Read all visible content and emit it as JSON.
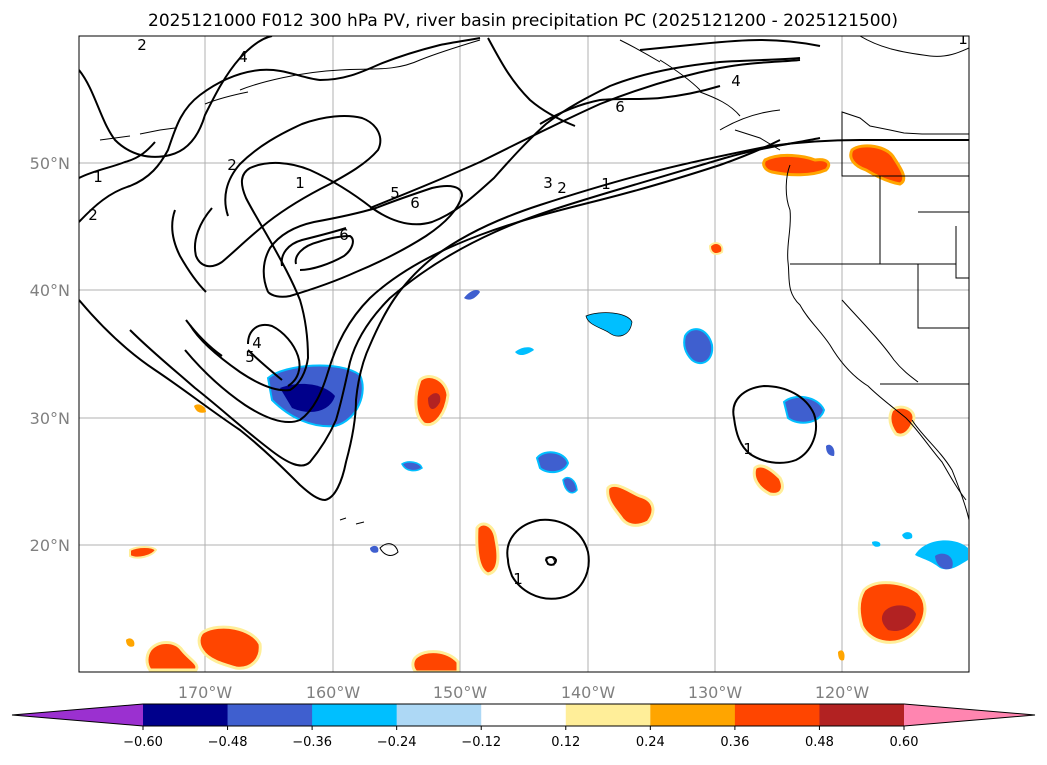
{
  "title": "2025121000 F012 300 hPa PV, river basin precipitation PC (2025121200 - 2025121500)",
  "lon_labels": [
    "170°W",
    "160°W",
    "150°W",
    "140°W",
    "130°W",
    "120°W"
  ],
  "lat_labels": [
    "50°N",
    "40°N",
    "30°N",
    "20°N"
  ],
  "colorbar": {
    "colors": [
      "#9b30d0",
      "#00008b",
      "#3f5fcf",
      "#00bfff",
      "#add8f5",
      "#ffffff",
      "#ffee99",
      "#ffa500",
      "#ff4500",
      "#b22222",
      "#ff85b0"
    ],
    "tick_labels": [
      "−0.60",
      "−0.48",
      "−0.36",
      "−0.24",
      "−0.12",
      "0.12",
      "0.24",
      "0.36",
      "0.48",
      "0.60"
    ]
  },
  "pv_labels": [
    "2",
    "4",
    "1",
    "2",
    "2",
    "1",
    "5",
    "6",
    "6",
    "6",
    "4",
    "3",
    "2",
    "1",
    "4",
    "5",
    "1",
    "1",
    "1"
  ],
  "palette": {
    "land": "#ffffff",
    "ocean": "#ffffff",
    "grid": "#b0b0b0"
  }
}
